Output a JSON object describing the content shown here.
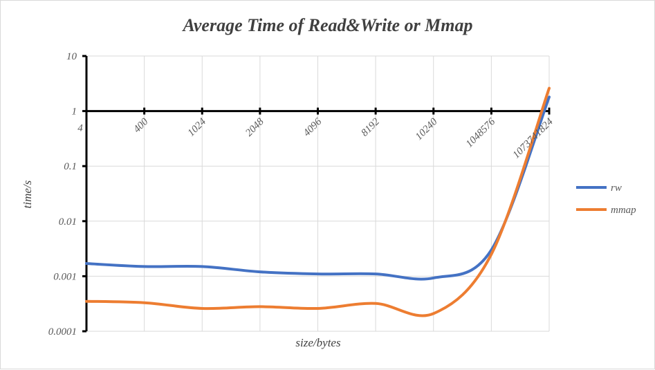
{
  "chart_data": {
    "type": "line",
    "title": "Average Time of Read&Write or Mmap",
    "xlabel": "size/bytes",
    "ylabel": "time/s",
    "y_scale": "log",
    "ylim": [
      0.0001,
      10
    ],
    "y_ticks": [
      "0.0001",
      "0.001",
      "0.01",
      "0.1",
      "1",
      "10"
    ],
    "y_tick_values": [
      0.0001,
      0.001,
      0.01,
      0.1,
      1,
      10
    ],
    "x_axis_crosses_at": 1,
    "categories": [
      "4",
      "400",
      "1024",
      "2048",
      "4096",
      "8192",
      "10240",
      "1048576",
      "1073741824"
    ],
    "series": [
      {
        "name": "rw",
        "color": "#4472c4",
        "values": [
          0.0017,
          0.0015,
          0.0015,
          0.0012,
          0.0011,
          0.0011,
          0.00093,
          0.003,
          1.8
        ]
      },
      {
        "name": "mmap",
        "color": "#ed7d31",
        "values": [
          0.00035,
          0.00033,
          0.00026,
          0.00028,
          0.00026,
          0.00032,
          0.00021,
          0.0025,
          2.6
        ]
      }
    ],
    "grid": true,
    "legend": "right"
  }
}
